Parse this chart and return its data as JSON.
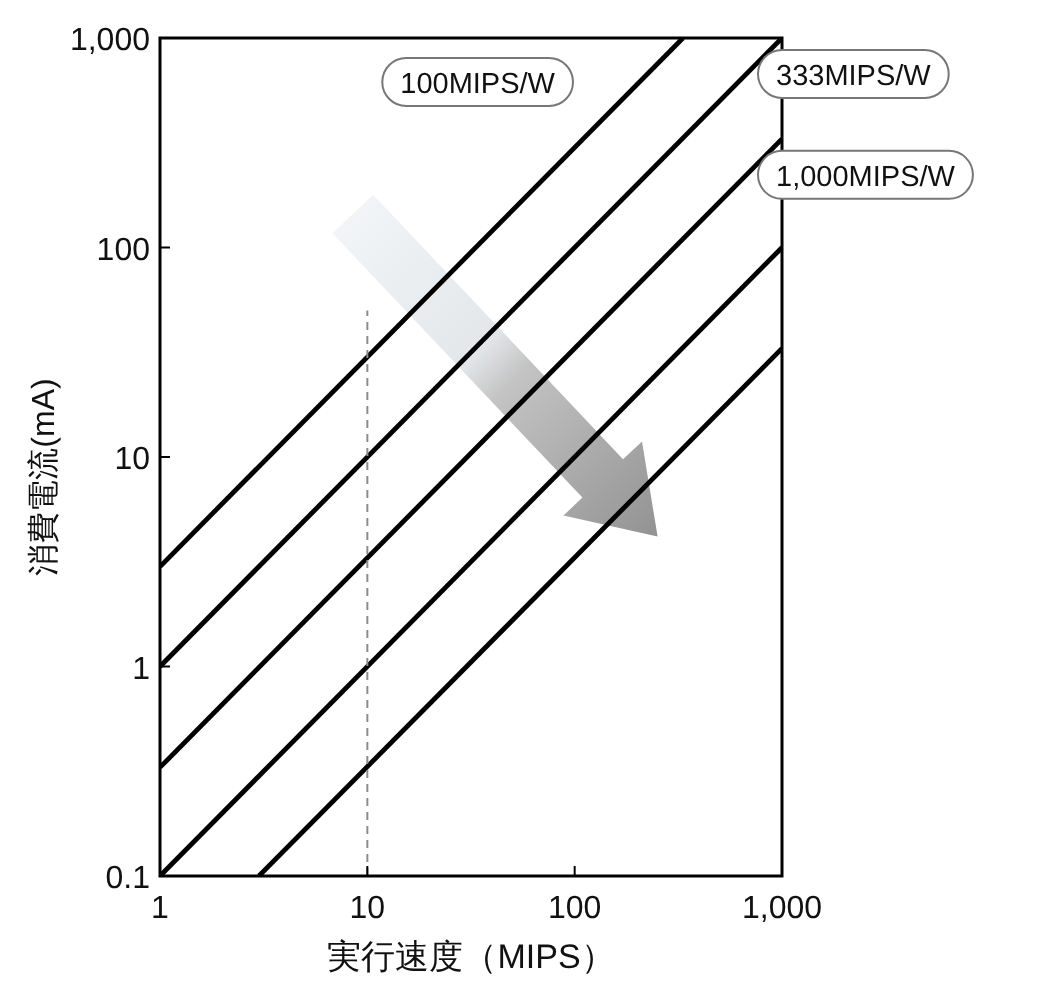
{
  "chart_data": {
    "type": "line",
    "xlabel": "実行速度（MIPS）",
    "ylabel": "消費電流(mA)",
    "log": "xy",
    "xlim": [
      1,
      1000
    ],
    "ylim": [
      0.1,
      1000
    ],
    "xticks": [
      1,
      10,
      100,
      {
        "value": 1000,
        "label": "1,000"
      }
    ],
    "yticks": [
      0.1,
      1,
      10,
      100,
      {
        "value": 1000,
        "label": "1,000"
      }
    ],
    "grid": false,
    "marker": "none",
    "series": [
      {
        "name": "100MIPS/W",
        "color": "#000000",
        "line_style": "solid",
        "x": [
          1,
          333
        ],
        "values": [
          3,
          1000
        ]
      },
      {
        "name": "333MIPS/W",
        "color": "#000000",
        "line_style": "solid",
        "x": [
          1,
          1000
        ],
        "values": [
          1,
          1000
        ]
      },
      {
        "name": "1,000MIPS/W",
        "color": "#000000",
        "line_style": "solid",
        "x": [
          1,
          1000
        ],
        "values": [
          0.33,
          330
        ]
      },
      {
        "color": "#000000",
        "line_style": "solid",
        "x": [
          1,
          1000
        ],
        "values": [
          0.1,
          100
        ]
      },
      {
        "color": "#000000",
        "line_style": "solid",
        "x": [
          3,
          1000
        ],
        "values": [
          0.1,
          33
        ]
      },
      {
        "color": "#8c8c8c",
        "line_style": "dashed",
        "x": [
          10,
          10
        ],
        "values": [
          0.1,
          50
        ]
      }
    ]
  }
}
